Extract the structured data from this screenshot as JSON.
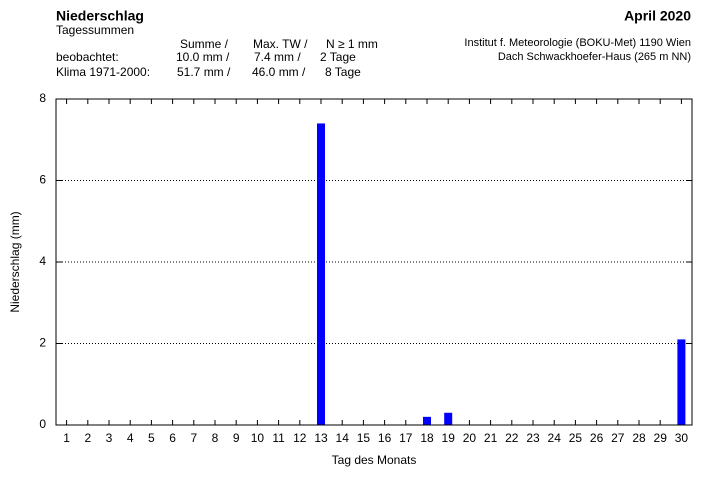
{
  "chart_data": {
    "type": "bar",
    "title": "Niederschlag",
    "subtitle": "Tagessummen",
    "date_label": "April 2020",
    "source_lines": [
      "Institut f. Meteorologie (BOKU-Met) 1190 Wien",
      "Dach Schwackhoefer-Haus (265 m NN)"
    ],
    "summary": {
      "columns": [
        "Summe  /",
        "Max. TW /",
        "N ≥ 1 mm"
      ],
      "rows": [
        [
          "beobachtet:",
          "10.0 mm /",
          "7.4 mm /",
          "2 Tage"
        ],
        [
          "Klima 1971-2000:",
          "51.7 mm /",
          "46.0 mm /",
          "8 Tage"
        ]
      ]
    },
    "x_label": "Tag des Monats",
    "y_label": "Niederschlag (mm)",
    "categories": [
      "1",
      "2",
      "3",
      "4",
      "5",
      "6",
      "7",
      "8",
      "9",
      "10",
      "11",
      "12",
      "13",
      "14",
      "15",
      "16",
      "17",
      "18",
      "19",
      "20",
      "21",
      "22",
      "23",
      "24",
      "25",
      "26",
      "27",
      "28",
      "29",
      "30"
    ],
    "values": [
      0,
      0,
      0,
      0,
      0,
      0,
      0,
      0,
      0,
      0,
      0,
      0,
      7.4,
      0,
      0,
      0,
      0,
      0.2,
      0.3,
      0,
      0,
      0,
      0,
      0,
      0,
      0,
      0,
      0,
      0,
      2.1
    ],
    "color": "#0000ff",
    "ylim": [
      0,
      8
    ],
    "yticks": [
      0,
      2,
      4,
      6,
      8
    ],
    "grid": true
  }
}
